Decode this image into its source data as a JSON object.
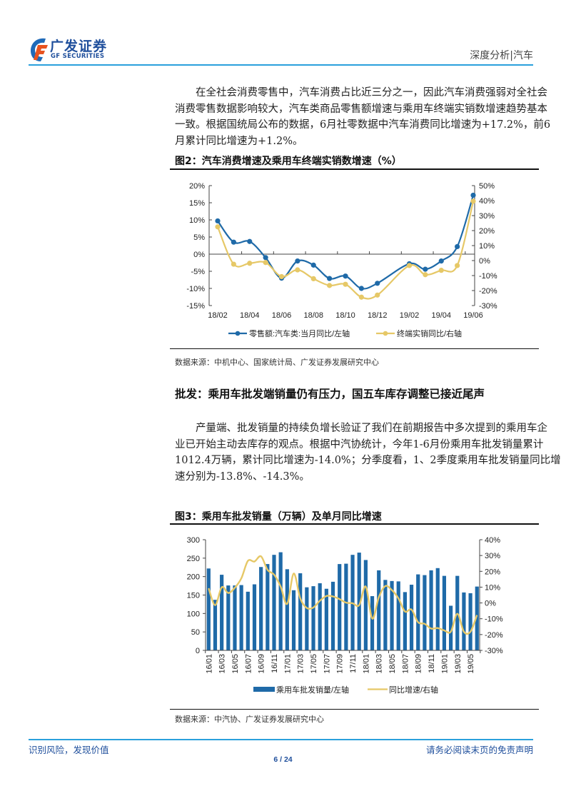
{
  "header": {
    "logo_cn": "广发证券",
    "logo_en": "GF SECURITIES",
    "section": "深度分析|汽车"
  },
  "intro": {
    "lines": [
      "在全社会消费零售中，汽车消费占比近三分之一，因此汽车消费强弱对全社会",
      "消费零售数据影响较大，汽车类商品零售额增速与乘用车终端实销数增速趋势基本",
      "一致。根据国统局公布的数据，6月社零数据中汽车消费同比增速为+17.2%，前6",
      "月累计同比增速为+1.2%。"
    ]
  },
  "figure2": {
    "title": "图2：汽车消费增速及乘用车终端实销数增速（%）",
    "source": "数据来源：中机中心、国家统计局、广发证券发展研究中心"
  },
  "section_heading": "批发：乘用车批发端销量仍有压力，国五车库存调整已接近尾声",
  "para2": {
    "lines": [
      "产量端、批发销量的持续负增长验证了我们在前期报告中多次提到的乘用车企",
      "业已开始主动去库存的观点。根据中汽协统计，今年1-6月份乘用车批发销量累计",
      "1012.4万辆，累计同比增速为-14.0%；分季度看，1、2季度乘用车批发销量同比增",
      "速分别为-13.8%、-14.3%。"
    ]
  },
  "figure3": {
    "title": "图3：乘用车批发销量（万辆）及单月同比增速",
    "source": "数据来源：中汽协、广发证券发展研究中心"
  },
  "footer": {
    "left": "识别风险，发现价值",
    "right": "请务必阅读末页的免责声明",
    "page": "6 / 24"
  },
  "colors": {
    "brand_blue": "#1f4f9c",
    "rule_blue": "#2aa0dc",
    "series_blue": "#1f6aa8",
    "series_gold": "#e6c867",
    "logo_orange": "#e8531f"
  },
  "chart_data": [
    {
      "type": "line",
      "title": "图2：汽车消费增速及乘用车终端实销数增速（%）",
      "categories": [
        "18/02",
        "18/03",
        "18/04",
        "18/05",
        "18/06",
        "18/07",
        "18/08",
        "18/09",
        "18/10",
        "18/11",
        "18/12",
        "19/01",
        "19/02",
        "19/03",
        "19/04",
        "19/05",
        "19/06"
      ],
      "x_tick_labels": [
        "18/02",
        "18/04",
        "18/06",
        "18/08",
        "18/10",
        "18/12",
        "19/02",
        "19/04",
        "19/06"
      ],
      "series": [
        {
          "name": "零售额:汽车类:当月同比/左轴",
          "axis": "left",
          "color": "#1f6aa8",
          "values": [
            9.7,
            3.5,
            3.7,
            -1.0,
            -7.0,
            -2.0,
            -3.2,
            -7.1,
            -6.4,
            -10.0,
            -8.5,
            null,
            -2.8,
            -4.4,
            -2.0,
            2.2,
            17.2
          ]
        },
        {
          "name": "终端实销同比/右轴",
          "axis": "right",
          "color": "#e6c867",
          "values": [
            22.5,
            -2.4,
            -1.8,
            -1.3,
            -10.7,
            -6.2,
            -12.1,
            -16.6,
            -15.8,
            -24.4,
            -23.0,
            null,
            -3.3,
            -9.4,
            -6.5,
            -3.3,
            39.6
          ]
        }
      ],
      "y_left": {
        "range": [
          -15,
          20
        ],
        "ticks": [
          20,
          15,
          10,
          5,
          0,
          -5,
          -10,
          -15
        ],
        "tick_labels": [
          "20%",
          "15%",
          "10%",
          "5%",
          "0%",
          "-5%",
          "-10%",
          "-15%"
        ]
      },
      "y_right": {
        "range": [
          -30,
          50
        ],
        "ticks": [
          50,
          40,
          30,
          20,
          10,
          0,
          -10,
          -20,
          -30
        ],
        "tick_labels": [
          "50%",
          "40%",
          "30%",
          "20%",
          "10%",
          "0%",
          "-10%",
          "-20%",
          "-30%"
        ]
      },
      "xlabel": "",
      "ylabel": "",
      "grid": false,
      "legend_position": "bottom"
    },
    {
      "type": "bar",
      "title": "图3：乘用车批发销量（万辆）及单月同比增速",
      "categories": [
        "16/01",
        "16/02",
        "16/03",
        "16/04",
        "16/05",
        "16/06",
        "16/07",
        "16/08",
        "16/09",
        "16/10",
        "16/11",
        "16/12",
        "17/01",
        "17/02",
        "17/03",
        "17/04",
        "17/05",
        "17/06",
        "17/07",
        "17/08",
        "17/09",
        "17/10",
        "17/11",
        "17/12",
        "18/01",
        "18/02",
        "18/03",
        "18/04",
        "18/05",
        "18/06",
        "18/07",
        "18/08",
        "18/09",
        "18/10",
        "18/11",
        "18/12",
        "19/01",
        "19/02",
        "19/03",
        "19/04",
        "19/05",
        "19/06"
      ],
      "x_tick_labels": [
        "16/01",
        "16/03",
        "16/05",
        "16/07",
        "16/09",
        "16/11",
        "17/01",
        "17/03",
        "17/05",
        "17/07",
        "17/09",
        "17/11",
        "18/01",
        "18/03",
        "18/05",
        "18/07",
        "18/09",
        "18/11",
        "19/01",
        "19/03",
        "19/05"
      ],
      "series": [
        {
          "name": "乘用车批发销量/左轴",
          "type": "bar",
          "axis": "left",
          "color": "#1f6aa8",
          "values": [
            222,
            137,
            205,
            176,
            176,
            177,
            159,
            179,
            226,
            234,
            259,
            266,
            220,
            163,
            209,
            171,
            174,
            182,
            167,
            186,
            234,
            235,
            259,
            265,
            245,
            147,
            217,
            191,
            188,
            187,
            158,
            178,
            206,
            204,
            217,
            223,
            202,
            121,
            202,
            157,
            155,
            173
          ]
        },
        {
          "name": "同比增速/右轴",
          "type": "line",
          "axis": "right",
          "color": "#e6c867",
          "values": [
            9.3,
            -1.4,
            9.9,
            6.3,
            9.6,
            15.6,
            26.6,
            26.2,
            29.5,
            20.9,
            17.9,
            10.4,
            -0.6,
            18.6,
            2.9,
            -3.2,
            -2.9,
            1.4,
            4.4,
            4.1,
            2.4,
            0.2,
            -0.2,
            -1.4,
            10.4,
            -9.9,
            3.6,
            10.7,
            8.1,
            2.9,
            -5.4,
            -4.2,
            -12.2,
            -13.2,
            -16.2,
            -15.9,
            -17.4,
            -18.2,
            -6.9,
            -18.2,
            -18.2,
            -7.7
          ]
        }
      ],
      "y_left": {
        "range": [
          0,
          300
        ],
        "ticks": [
          300,
          250,
          200,
          150,
          100,
          50,
          0
        ],
        "tick_labels": [
          "300",
          "250",
          "200",
          "150",
          "100",
          "50",
          "0"
        ]
      },
      "y_right": {
        "range": [
          -30,
          40
        ],
        "ticks": [
          40,
          30,
          20,
          10,
          0,
          -10,
          -20,
          -30
        ],
        "tick_labels": [
          "40%",
          "30%",
          "20%",
          "10%",
          "0%",
          "-10%",
          "-20%",
          "-30%"
        ]
      },
      "xlabel": "",
      "ylabel": "",
      "grid": false,
      "legend_position": "bottom"
    }
  ]
}
